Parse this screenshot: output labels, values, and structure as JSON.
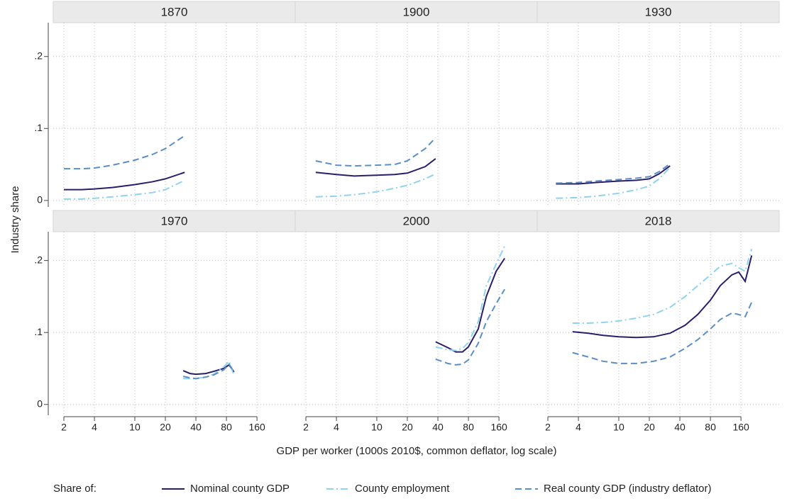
{
  "chart_data": [
    {
      "type": "line",
      "title": "1870",
      "xscale": "log",
      "xlim": [
        1.57,
        381
      ],
      "ylim": [
        -0.009,
        0.247
      ],
      "xticks": [
        2,
        4,
        10,
        20,
        40,
        80,
        160
      ],
      "yticks": [
        0,
        {
          "value": 0.1,
          "label": ".1"
        },
        {
          "value": 0.2,
          "label": ".2"
        }
      ],
      "grid": true,
      "series": [
        {
          "name": "Nominal county GDP",
          "color": "#2a1e6b",
          "linestyle": "solid",
          "x": [
            2,
            3,
            4,
            6,
            10,
            15,
            20,
            31
          ],
          "values": [
            0.015,
            0.015,
            0.016,
            0.018,
            0.022,
            0.026,
            0.03,
            0.039
          ]
        },
        {
          "name": "County employment",
          "color": "#8fd4ec",
          "linestyle": "dashdot",
          "x": [
            2,
            3,
            4,
            6,
            10,
            15,
            20,
            31
          ],
          "values": [
            0.002,
            0.002,
            0.003,
            0.005,
            0.008,
            0.011,
            0.015,
            0.028
          ]
        },
        {
          "name": "Real county GDP (industry deflator)",
          "color": "#5b8fc4",
          "linestyle": "dashed",
          "x": [
            2,
            3,
            4,
            6,
            10,
            15,
            20,
            31
          ],
          "values": [
            0.044,
            0.044,
            0.045,
            0.049,
            0.056,
            0.064,
            0.072,
            0.09
          ]
        }
      ]
    },
    {
      "type": "line",
      "title": "1900",
      "xscale": "log",
      "xlim": [
        1.57,
        381
      ],
      "ylim": [
        -0.009,
        0.247
      ],
      "xticks": [
        2,
        4,
        10,
        20,
        40,
        80,
        160
      ],
      "yticks": [
        0,
        {
          "value": 0.1,
          "label": ".1"
        },
        {
          "value": 0.2,
          "label": ".2"
        }
      ],
      "grid": true,
      "series": [
        {
          "name": "Nominal county GDP",
          "color": "#2a1e6b",
          "linestyle": "solid",
          "x": [
            2.5,
            4,
            6,
            10,
            15,
            20,
            30,
            38
          ],
          "values": [
            0.039,
            0.036,
            0.034,
            0.035,
            0.036,
            0.038,
            0.047,
            0.058
          ]
        },
        {
          "name": "County employment",
          "color": "#8fd4ec",
          "linestyle": "dashdot",
          "x": [
            2.5,
            4,
            6,
            10,
            15,
            20,
            30,
            38
          ],
          "values": [
            0.005,
            0.006,
            0.008,
            0.012,
            0.017,
            0.021,
            0.03,
            0.037
          ]
        },
        {
          "name": "Real county GDP (industry deflator)",
          "color": "#5b8fc4",
          "linestyle": "dashed",
          "x": [
            2.5,
            4,
            6,
            10,
            15,
            20,
            30,
            38
          ],
          "values": [
            0.055,
            0.049,
            0.048,
            0.049,
            0.05,
            0.055,
            0.072,
            0.087
          ]
        }
      ]
    },
    {
      "type": "line",
      "title": "1930",
      "xscale": "log",
      "xlim": [
        1.57,
        381
      ],
      "ylim": [
        -0.009,
        0.247
      ],
      "xticks": [
        2,
        4,
        10,
        20,
        40,
        80,
        160
      ],
      "yticks": [
        0,
        {
          "value": 0.1,
          "label": ".1"
        },
        {
          "value": 0.2,
          "label": ".2"
        }
      ],
      "grid": true,
      "series": [
        {
          "name": "Nominal county GDP",
          "color": "#2a1e6b",
          "linestyle": "solid",
          "x": [
            2.4,
            4,
            6,
            10,
            15,
            20,
            25,
            32
          ],
          "values": [
            0.023,
            0.023,
            0.025,
            0.027,
            0.028,
            0.03,
            0.037,
            0.048
          ]
        },
        {
          "name": "County employment",
          "color": "#8fd4ec",
          "linestyle": "dashdot",
          "x": [
            2.4,
            4,
            6,
            10,
            15,
            20,
            25,
            32
          ],
          "values": [
            0.003,
            0.004,
            0.006,
            0.01,
            0.015,
            0.02,
            0.03,
            0.046
          ]
        },
        {
          "name": "Real county GDP (industry deflator)",
          "color": "#5b8fc4",
          "linestyle": "dashed",
          "x": [
            2.4,
            4,
            6,
            10,
            15,
            20,
            25,
            32
          ],
          "values": [
            0.024,
            0.025,
            0.027,
            0.029,
            0.031,
            0.033,
            0.04,
            0.051
          ]
        }
      ]
    },
    {
      "type": "line",
      "title": "1970",
      "xscale": "log",
      "xlim": [
        1.57,
        381
      ],
      "ylim": [
        -0.015,
        0.24
      ],
      "xticks": [
        2,
        4,
        10,
        20,
        40,
        80,
        160
      ],
      "yticks": [
        0,
        {
          "value": 0.1,
          "label": ".1"
        },
        {
          "value": 0.2,
          "label": ".2"
        }
      ],
      "grid": true,
      "series": [
        {
          "name": "Nominal county GDP",
          "color": "#2a1e6b",
          "linestyle": "solid",
          "x": [
            30,
            35,
            40,
            50,
            60,
            75,
            85,
            95
          ],
          "values": [
            0.047,
            0.043,
            0.042,
            0.043,
            0.046,
            0.05,
            0.055,
            0.045
          ]
        },
        {
          "name": "County employment",
          "color": "#8fd4ec",
          "linestyle": "dashdot",
          "x": [
            30,
            35,
            40,
            50,
            60,
            75,
            85,
            95
          ],
          "values": [
            0.036,
            0.036,
            0.036,
            0.038,
            0.042,
            0.052,
            0.06,
            0.04
          ]
        },
        {
          "name": "Real county GDP (industry deflator)",
          "color": "#5b8fc4",
          "linestyle": "dashed",
          "x": [
            30,
            35,
            40,
            50,
            60,
            75,
            85,
            95
          ],
          "values": [
            0.039,
            0.037,
            0.036,
            0.038,
            0.041,
            0.048,
            0.056,
            0.045
          ]
        }
      ]
    },
    {
      "type": "line",
      "title": "2000",
      "xscale": "log",
      "xlim": [
        1.57,
        381
      ],
      "ylim": [
        -0.015,
        0.24
      ],
      "xticks": [
        2,
        4,
        10,
        20,
        40,
        80,
        160
      ],
      "yticks": [
        0,
        {
          "value": 0.1,
          "label": ".1"
        },
        {
          "value": 0.2,
          "label": ".2"
        }
      ],
      "grid": true,
      "series": [
        {
          "name": "Nominal county GDP",
          "color": "#2a1e6b",
          "linestyle": "solid",
          "x": [
            38,
            50,
            60,
            70,
            80,
            100,
            120,
            150,
            182
          ],
          "values": [
            0.087,
            0.079,
            0.073,
            0.073,
            0.08,
            0.105,
            0.15,
            0.185,
            0.203
          ]
        },
        {
          "name": "County employment",
          "color": "#8fd4ec",
          "linestyle": "dashdot",
          "x": [
            38,
            50,
            60,
            70,
            80,
            100,
            120,
            150,
            182
          ],
          "values": [
            0.08,
            0.076,
            0.075,
            0.078,
            0.086,
            0.115,
            0.165,
            0.195,
            0.22
          ]
        },
        {
          "name": "Real county GDP (industry deflator)",
          "color": "#5b8fc4",
          "linestyle": "dashed",
          "x": [
            38,
            50,
            60,
            70,
            80,
            100,
            120,
            150,
            182
          ],
          "values": [
            0.063,
            0.057,
            0.055,
            0.056,
            0.062,
            0.085,
            0.115,
            0.14,
            0.16
          ]
        }
      ]
    },
    {
      "type": "line",
      "title": "2018",
      "xscale": "log",
      "xlim": [
        1.57,
        381
      ],
      "ylim": [
        -0.015,
        0.24
      ],
      "xticks": [
        2,
        4,
        10,
        20,
        40,
        80,
        160
      ],
      "yticks": [
        0,
        {
          "value": 0.1,
          "label": ".1"
        },
        {
          "value": 0.2,
          "label": ".2"
        }
      ],
      "grid": true,
      "series": [
        {
          "name": "Nominal county GDP",
          "color": "#2a1e6b",
          "linestyle": "solid",
          "x": [
            3.5,
            5,
            7,
            10,
            15,
            22,
            32,
            45,
            60,
            80,
            100,
            130,
            152,
            176,
            204
          ],
          "values": [
            0.101,
            0.099,
            0.096,
            0.094,
            0.093,
            0.094,
            0.099,
            0.11,
            0.125,
            0.145,
            0.165,
            0.18,
            0.184,
            0.171,
            0.207
          ]
        },
        {
          "name": "County employment",
          "color": "#8fd4ec",
          "linestyle": "dashdot",
          "x": [
            3.5,
            5,
            7,
            10,
            15,
            22,
            32,
            45,
            60,
            80,
            100,
            130,
            152,
            176,
            204
          ],
          "values": [
            0.113,
            0.113,
            0.114,
            0.116,
            0.12,
            0.125,
            0.135,
            0.15,
            0.165,
            0.18,
            0.192,
            0.196,
            0.19,
            0.185,
            0.216
          ]
        },
        {
          "name": "Real county GDP (industry deflator)",
          "color": "#5b8fc4",
          "linestyle": "dashed",
          "x": [
            3.5,
            5,
            7,
            10,
            15,
            22,
            32,
            45,
            60,
            80,
            100,
            130,
            152,
            176,
            204
          ],
          "values": [
            0.072,
            0.066,
            0.06,
            0.057,
            0.057,
            0.06,
            0.066,
            0.078,
            0.09,
            0.105,
            0.118,
            0.127,
            0.125,
            0.122,
            0.142
          ]
        }
      ]
    }
  ],
  "y_label": "Industry share",
  "x_label": "GDP per worker (1000s 2010$, common deflator, log scale)",
  "legend_title": "Share of:"
}
